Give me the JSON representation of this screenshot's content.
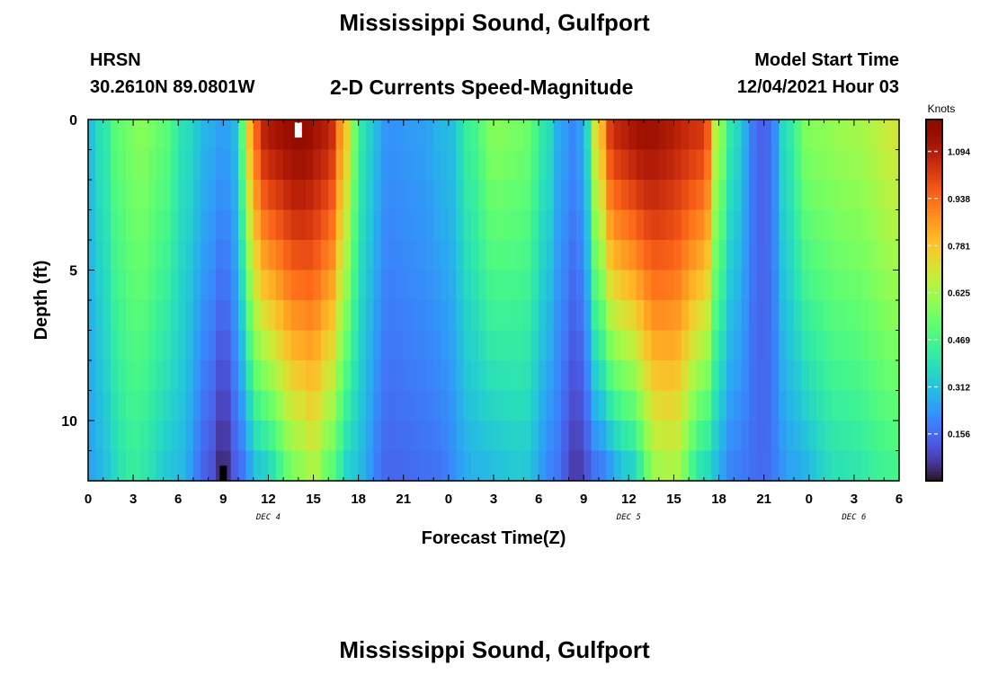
{
  "header": {
    "title": "Mississippi Sound, Gulfport",
    "station": "HRSN",
    "coordinates": "30.2610N  89.0801W",
    "subtitle": "2-D Currents Speed-Magnitude",
    "model_start_label": "Model Start Time",
    "model_start_value": "12/04/2021 Hour 03"
  },
  "footer": {
    "title": "Mississippi Sound, Gulfport"
  },
  "chart_data": {
    "type": "heatmap",
    "title": "2-D Currents Speed-Magnitude",
    "xlabel": "Forecast Time(Z)",
    "ylabel": "Depth (ft)",
    "x_range_hours_from_dec4_00z": [
      0,
      54
    ],
    "y_range_ft": [
      0,
      12
    ],
    "y_inverted": true,
    "x_tick_labels": [
      "0",
      "3",
      "6",
      "9",
      "12",
      "15",
      "18",
      "21",
      "0",
      "3",
      "6",
      "9",
      "12",
      "15",
      "18",
      "21",
      "0",
      "3",
      "6"
    ],
    "y_ticks": [
      0,
      5,
      10
    ],
    "y_tick_labels": [
      "0",
      "5",
      "10"
    ],
    "date_labels": [
      {
        "text": "DEC 4",
        "hour": 12
      },
      {
        "text": "DEC 5",
        "hour": 36
      },
      {
        "text": "DEC 6",
        "hour": 51
      }
    ],
    "colorbar": {
      "label": "Knots",
      "min": 0.0,
      "max": 1.2,
      "tick_values": [
        0.156,
        0.312,
        0.469,
        0.625,
        0.781,
        0.938,
        1.094
      ],
      "tick_labels": [
        "0.156",
        "0.312",
        "0.469",
        "0.625",
        "0.781",
        "0.938",
        "1.094"
      ],
      "colormap": "turbo"
    },
    "speed_model_knots": {
      "description_free": true,
      "keyframes_surface": [
        {
          "h": 0,
          "v": 0.3
        },
        {
          "h": 1,
          "v": 0.4
        },
        {
          "h": 2,
          "v": 0.52
        },
        {
          "h": 3.5,
          "v": 0.58
        },
        {
          "h": 5,
          "v": 0.52
        },
        {
          "h": 6.5,
          "v": 0.38
        },
        {
          "h": 8,
          "v": 0.28
        },
        {
          "h": 9,
          "v": 0.24
        },
        {
          "h": 9.8,
          "v": 0.3
        },
        {
          "h": 10.4,
          "v": 0.55
        },
        {
          "h": 11,
          "v": 0.95
        },
        {
          "h": 12,
          "v": 1.12
        },
        {
          "h": 14,
          "v": 1.18
        },
        {
          "h": 16,
          "v": 1.1
        },
        {
          "h": 17,
          "v": 0.85
        },
        {
          "h": 17.7,
          "v": 0.55
        },
        {
          "h": 18.5,
          "v": 0.36
        },
        {
          "h": 20,
          "v": 0.22
        },
        {
          "h": 22,
          "v": 0.24
        },
        {
          "h": 24,
          "v": 0.3
        },
        {
          "h": 25.5,
          "v": 0.45
        },
        {
          "h": 27,
          "v": 0.58
        },
        {
          "h": 29,
          "v": 0.55
        },
        {
          "h": 30.5,
          "v": 0.4
        },
        {
          "h": 31.5,
          "v": 0.25
        },
        {
          "h": 32.5,
          "v": 0.2
        },
        {
          "h": 33,
          "v": 0.3
        },
        {
          "h": 34,
          "v": 0.78
        },
        {
          "h": 35,
          "v": 1.08
        },
        {
          "h": 37,
          "v": 1.15
        },
        {
          "h": 41,
          "v": 1.05
        },
        {
          "h": 42,
          "v": 0.6
        },
        {
          "h": 43,
          "v": 0.38
        },
        {
          "h": 44.5,
          "v": 0.16
        },
        {
          "h": 45,
          "v": 0.12
        },
        {
          "h": 45.5,
          "v": 0.18
        },
        {
          "h": 46.5,
          "v": 0.4
        },
        {
          "h": 48,
          "v": 0.58
        },
        {
          "h": 51,
          "v": 0.62
        },
        {
          "h": 54,
          "v": 0.7
        }
      ],
      "keyframes_bottom": [
        {
          "h": 0,
          "v": 0.25
        },
        {
          "h": 3,
          "v": 0.42
        },
        {
          "h": 6,
          "v": 0.3
        },
        {
          "h": 8,
          "v": 0.12
        },
        {
          "h": 9,
          "v": 0.02
        },
        {
          "h": 10,
          "v": 0.14
        },
        {
          "h": 11.5,
          "v": 0.3
        },
        {
          "h": 14,
          "v": 0.55
        },
        {
          "h": 15,
          "v": 0.62
        },
        {
          "h": 16,
          "v": 0.5
        },
        {
          "h": 17.5,
          "v": 0.32
        },
        {
          "h": 20,
          "v": 0.14
        },
        {
          "h": 23,
          "v": 0.16
        },
        {
          "h": 26,
          "v": 0.28
        },
        {
          "h": 29,
          "v": 0.32
        },
        {
          "h": 31,
          "v": 0.18
        },
        {
          "h": 32.5,
          "v": 0.06
        },
        {
          "h": 34,
          "v": 0.15
        },
        {
          "h": 36,
          "v": 0.3
        },
        {
          "h": 38,
          "v": 0.6
        },
        {
          "h": 39,
          "v": 0.62
        },
        {
          "h": 41,
          "v": 0.35
        },
        {
          "h": 43,
          "v": 0.18
        },
        {
          "h": 45,
          "v": 0.15
        },
        {
          "h": 47,
          "v": 0.25
        },
        {
          "h": 50,
          "v": 0.38
        },
        {
          "h": 54,
          "v": 0.45
        }
      ]
    },
    "markers": [
      {
        "hour": 14,
        "depth_from": 0.1,
        "depth_to": 0.6,
        "color": "#ffffff"
      },
      {
        "hour": 9,
        "depth_from": 11.5,
        "depth_to": 12,
        "color": "#000000"
      }
    ]
  }
}
